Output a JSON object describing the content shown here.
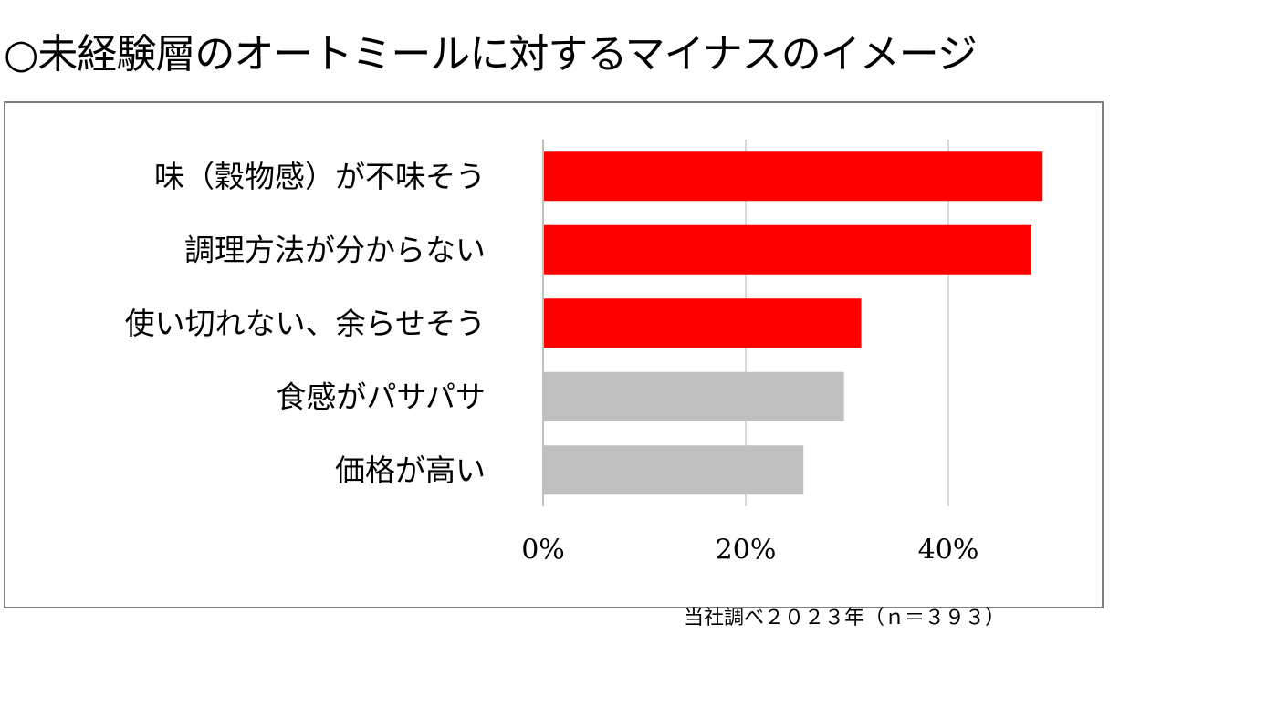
{
  "title": "○未経験層のオートミールに対するマイナスのイメージ",
  "source_note": "当社調べ２０２３年（ｎ＝３９３）",
  "colors": {
    "highlight": "#ff0000",
    "normal": "#bfbfbf",
    "grid": "#d9d9d9",
    "axis": "#bfbfbf"
  },
  "chart_data": {
    "type": "bar",
    "orientation": "horizontal",
    "title": "",
    "xlabel": "",
    "ylabel": "",
    "categories": [
      "味（穀物感）が不味そう",
      "調理方法が分からない",
      "使い切れない、余らせそう",
      "食感がパサパサ",
      "価格が高い"
    ],
    "values": [
      49.3,
      48.2,
      31.4,
      29.7,
      25.7
    ],
    "bar_colors": [
      "#ff0000",
      "#ff0000",
      "#ff0000",
      "#bfbfbf",
      "#bfbfbf"
    ],
    "xlim": [
      0,
      50
    ],
    "x_ticks": [
      0,
      20,
      40
    ],
    "x_tick_labels": [
      "0%",
      "20%",
      "40%"
    ],
    "grid": true,
    "legend": false
  }
}
